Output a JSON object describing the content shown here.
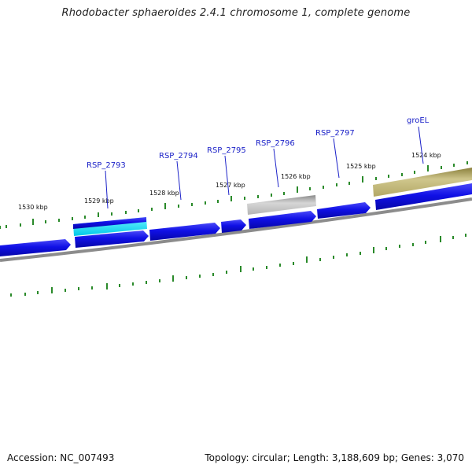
{
  "title": "Rhodobacter sphaeroides 2.4.1 chromosome 1, complete genome",
  "footer": {
    "accession": "Accession: NC_007493",
    "summary": "Topology: circular; Length: 3,188,609 bp; Genes: 3,070"
  },
  "colors": {
    "cds_forward": "#1010e6",
    "backbone": "#888888",
    "tick": "#2a8a2a",
    "label": "#1c22c8",
    "groEL_feature": "#b8ad6c",
    "RSP_2796_feature": "#b5b5b5",
    "RSP_2793_feature": "#00d8f0"
  },
  "kbp_labels": [
    "1530 kbp",
    "1529 kbp",
    "1528 kbp",
    "1527 kbp",
    "1526 kbp",
    "1525 kbp",
    "1524 kbp"
  ],
  "gene_labels": [
    "RSP_2793",
    "RSP_2794",
    "RSP_2795",
    "RSP_2796",
    "RSP_2797",
    "groEL"
  ]
}
